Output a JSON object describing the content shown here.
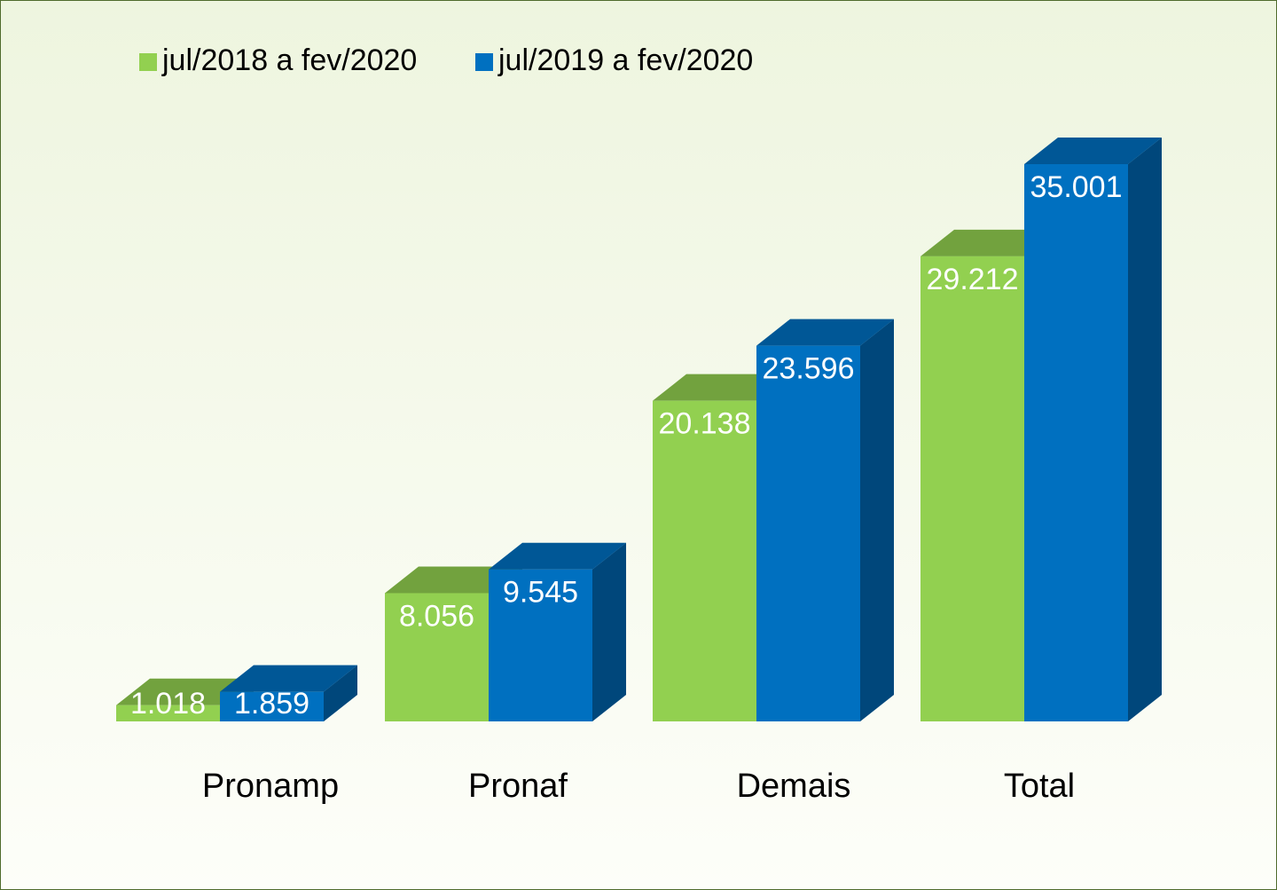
{
  "chart_data": {
    "type": "bar3d",
    "categories": [
      "Pronamp",
      "Pronaf",
      "Demais",
      "Total"
    ],
    "series": [
      {
        "name": "jul/2018 a fev/2020",
        "color": "#92d050",
        "values": [
          1018,
          8056,
          20138,
          29212
        ],
        "value_labels": [
          "1.018",
          "8.056",
          "20.138",
          "29.212"
        ]
      },
      {
        "name": "jul/2019 a fev/2020",
        "color": "#0070c0",
        "values": [
          1859,
          9545,
          23596,
          35001
        ],
        "value_labels": [
          "1.859",
          "9.545",
          "23.596",
          "35.001"
        ]
      }
    ]
  }
}
